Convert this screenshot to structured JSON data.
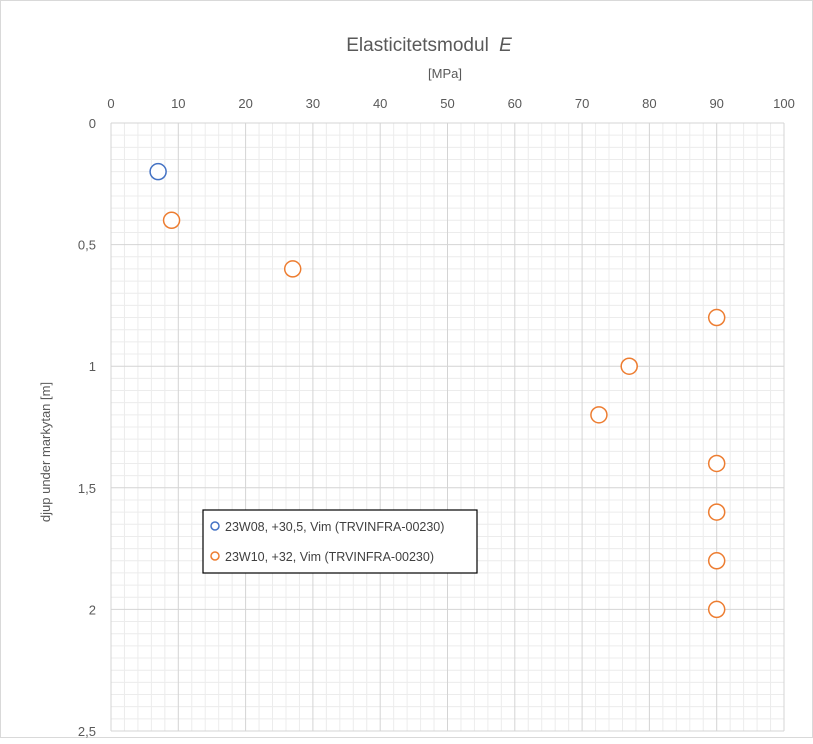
{
  "chart_data": {
    "type": "scatter",
    "title": "Elasticitetsmodul",
    "title_symbol": "E",
    "subtitle": "[MPa]",
    "xlabel": "",
    "ylabel": "djup under markytan [m]",
    "xlim": [
      0,
      100
    ],
    "ylim": [
      0,
      2.5
    ],
    "y_reversed": true,
    "x_axis_position": "top",
    "x_ticks": [
      "0",
      "10",
      "20",
      "30",
      "40",
      "50",
      "60",
      "70",
      "80",
      "90",
      "100"
    ],
    "y_ticks": [
      "0",
      "0,5",
      "1",
      "1,5",
      "2",
      "2,5"
    ],
    "grid": true,
    "minor_grid": true,
    "legend_position": "lower-left",
    "series": [
      {
        "name": "23W08, +30,5, Vim (TRVINFRA-00230)",
        "color": "#4472c4",
        "points": [
          {
            "x": 7,
            "y": 0.2
          }
        ]
      },
      {
        "name": "23W10, +32, Vim (TRVINFRA-00230)",
        "color": "#ed7d31",
        "points": [
          {
            "x": 9,
            "y": 0.4
          },
          {
            "x": 27,
            "y": 0.6
          },
          {
            "x": 90,
            "y": 0.8
          },
          {
            "x": 77,
            "y": 1.0
          },
          {
            "x": 72.5,
            "y": 1.2
          },
          {
            "x": 90,
            "y": 1.4
          },
          {
            "x": 90,
            "y": 1.6
          },
          {
            "x": 90,
            "y": 1.8
          },
          {
            "x": 90,
            "y": 2.0
          }
        ]
      }
    ]
  }
}
